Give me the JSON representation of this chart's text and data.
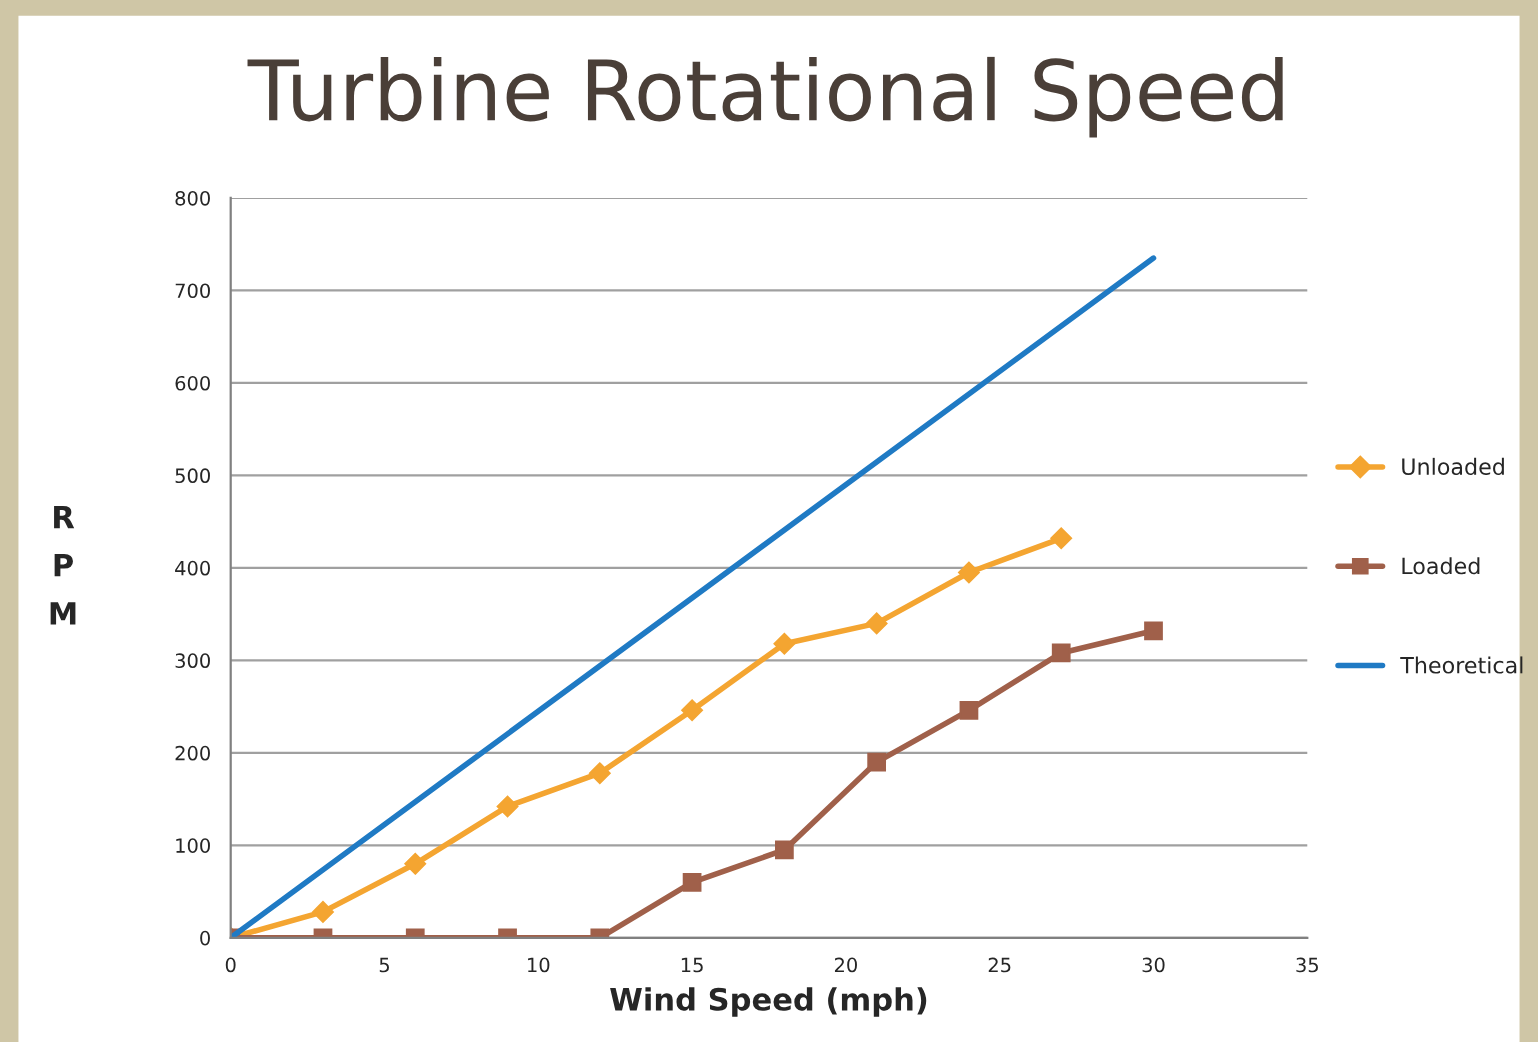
{
  "chart_data": {
    "type": "line",
    "title": "Turbine Rotational Speed",
    "xlabel": "Wind Speed (mph)",
    "ylabel": "R\nP\nM",
    "xlim": [
      0,
      35
    ],
    "xticks": [
      0,
      5,
      10,
      15,
      20,
      25,
      30,
      35
    ],
    "ylim": [
      0,
      800
    ],
    "yticks": [
      0,
      100,
      200,
      300,
      400,
      500,
      600,
      700,
      800
    ],
    "grid": "y",
    "legend": "right",
    "series": [
      {
        "name": "Unloaded",
        "color": "#f4a531",
        "marker": "diamond",
        "x": [
          0,
          3,
          6,
          9,
          12,
          15,
          18,
          21,
          24,
          27
        ],
        "values": [
          0,
          28,
          80,
          142,
          178,
          246,
          318,
          340,
          395,
          432
        ]
      },
      {
        "name": "Loaded",
        "color": "#a0604a",
        "marker": "square",
        "x": [
          0,
          3,
          6,
          9,
          12,
          15,
          18,
          21,
          24,
          27,
          30
        ],
        "values": [
          0,
          0,
          0,
          0,
          0,
          60,
          95,
          190,
          246,
          308,
          332
        ]
      },
      {
        "name": "Theoretical",
        "color": "#1f7ac4",
        "marker": "none",
        "x": [
          0,
          30
        ],
        "values": [
          0,
          735
        ]
      }
    ]
  }
}
